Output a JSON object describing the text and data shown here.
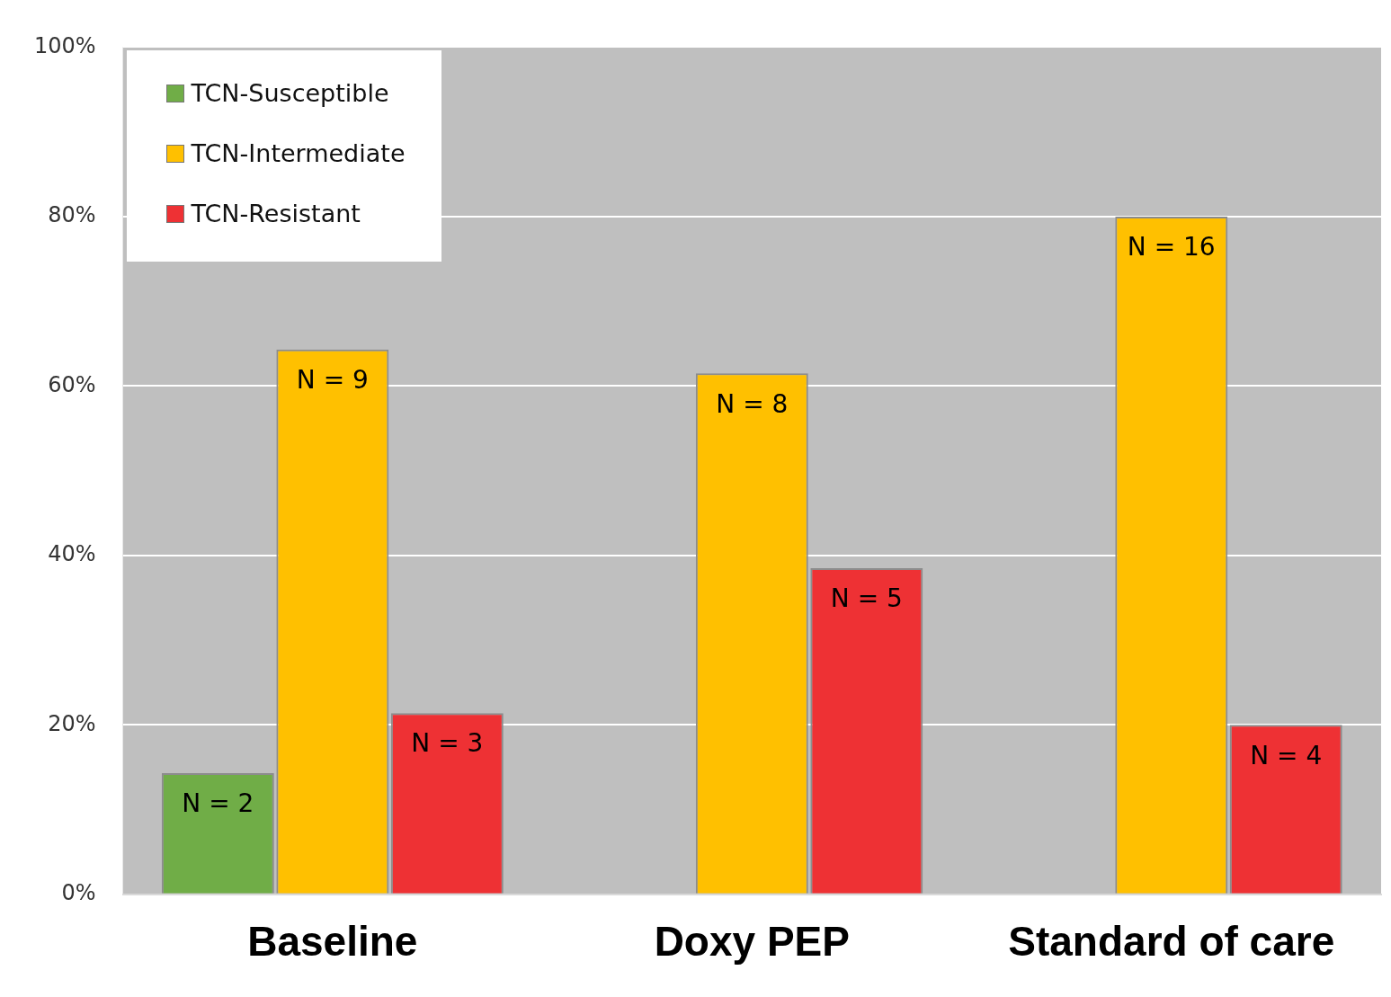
{
  "chart_data": {
    "type": "bar",
    "categories": [
      "Baseline",
      "Doxy PEP",
      "Standard of care"
    ],
    "series": [
      {
        "name": "TCN-Susceptible",
        "color": "#70ad47",
        "values": [
          14.3,
          0,
          0
        ]
      },
      {
        "name": "TCN-Intermediate",
        "color": "#ffc000",
        "values": [
          64.3,
          61.5,
          80
        ]
      },
      {
        "name": "TCN-Resistant",
        "color": "#ee3134",
        "values": [
          21.4,
          38.5,
          20
        ]
      }
    ],
    "annotations": [
      "N = 2",
      "N = 9",
      "N = 3",
      "N = 8",
      "N = 5",
      "N = 16",
      "N = 4"
    ],
    "ylim": [
      0,
      100
    ],
    "yticks": [
      {
        "value": 0,
        "label": "0%"
      },
      {
        "value": 20,
        "label": "20%"
      },
      {
        "value": 40,
        "label": "40%"
      },
      {
        "value": 60,
        "label": "60%"
      },
      {
        "value": 80,
        "label": "80%"
      },
      {
        "value": 100,
        "label": "100%"
      }
    ],
    "grid": "y",
    "legend": "top left"
  }
}
